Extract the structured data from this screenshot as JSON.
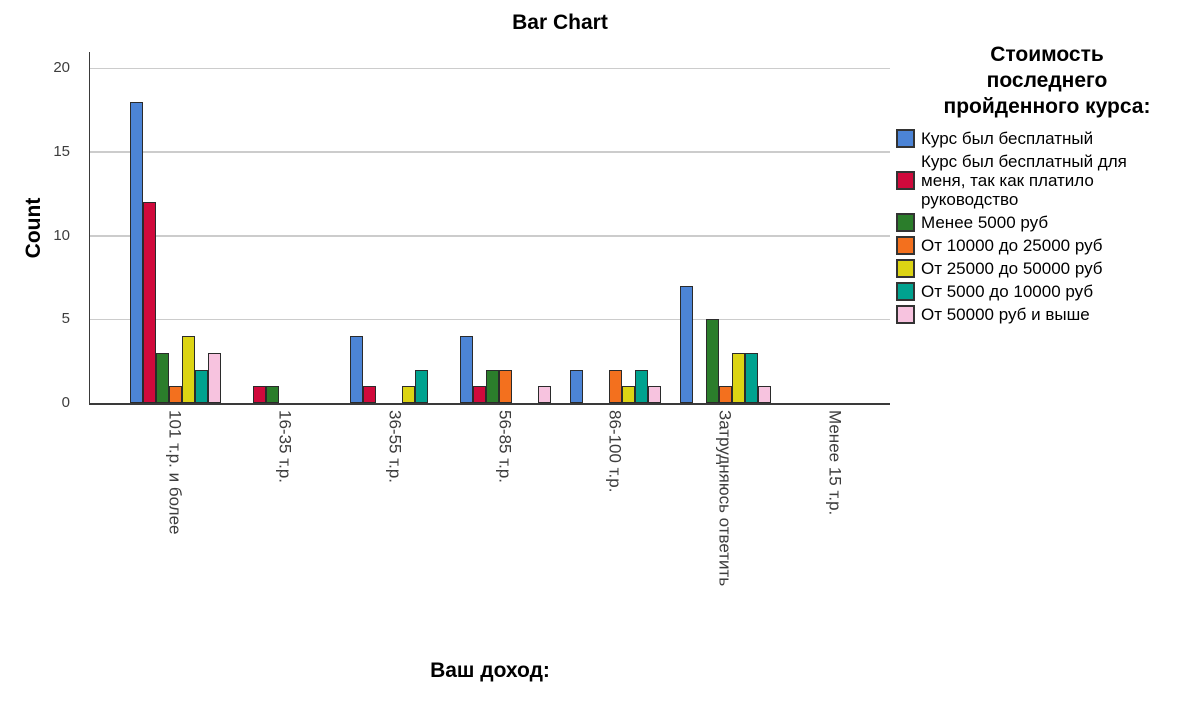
{
  "chart_data": {
    "type": "bar",
    "title": "Bar Chart",
    "xlabel": "Ваш доход:",
    "ylabel": "Count",
    "ylim": [
      0,
      21
    ],
    "yticks": [
      0,
      5,
      10,
      15,
      20
    ],
    "grid": "horizontal",
    "legend_position": "right",
    "legend_title": "Стоимость\nпоследнего\nпройденного курса:",
    "categories": [
      "101 т.р. и более",
      "16-35 т.р.",
      "36-55 т.р.",
      "56-85 т.р.",
      "86-100 т.р.",
      "Затрудняюсь ответить",
      "Менее 15 т.р."
    ],
    "series": [
      {
        "name": "Курс был бесплатный",
        "color": "#4C84D6",
        "values": [
          18,
          0,
          4,
          4,
          2,
          7,
          0
        ]
      },
      {
        "name": "Курс был бесплатный для меня, так как платило руководство",
        "color": "#D00A3C",
        "values": [
          12,
          1,
          1,
          1,
          0,
          0,
          0
        ]
      },
      {
        "name": "Менее 5000 руб",
        "color": "#2B7D2B",
        "values": [
          3,
          1,
          0,
          2,
          0,
          5,
          0
        ]
      },
      {
        "name": "От 10000 до 25000 руб",
        "color": "#F3701E",
        "values": [
          1,
          0,
          0,
          2,
          2,
          1,
          0
        ]
      },
      {
        "name": "От 25000 до 50000 руб",
        "color": "#DCD414",
        "values": [
          4,
          0,
          1,
          0,
          1,
          3,
          0
        ]
      },
      {
        "name": "От 5000 до 10000 руб",
        "color": "#00A28F",
        "values": [
          2,
          0,
          2,
          0,
          2,
          3,
          0
        ]
      },
      {
        "name": "От 50000 руб и выше",
        "color": "#F7C3DF",
        "values": [
          3,
          0,
          0,
          1,
          1,
          1,
          0
        ]
      }
    ]
  },
  "colors": {
    "background": "#ffffff",
    "axis": "#3a3a3a",
    "grid": "#cccccc",
    "bar_border": "#2b2b2b",
    "tick_text": "#3d3d3d",
    "text": "#000000"
  }
}
